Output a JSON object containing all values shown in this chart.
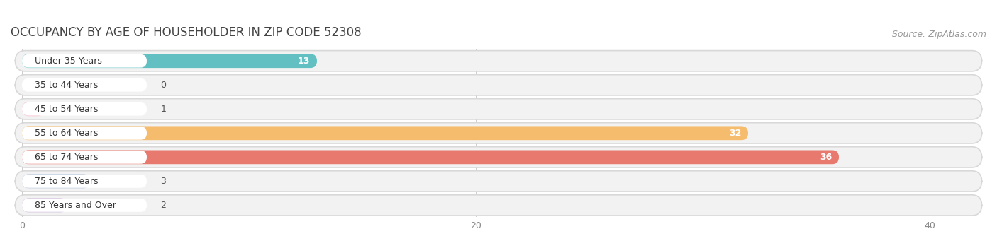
{
  "title": "OCCUPANCY BY AGE OF HOUSEHOLDER IN ZIP CODE 52308",
  "source": "Source: ZipAtlas.com",
  "categories": [
    "Under 35 Years",
    "35 to 44 Years",
    "45 to 54 Years",
    "55 to 64 Years",
    "65 to 74 Years",
    "75 to 84 Years",
    "85 Years and Over"
  ],
  "values": [
    13,
    0,
    1,
    32,
    36,
    3,
    2
  ],
  "bar_colors": [
    "#62c0c2",
    "#a9a9d9",
    "#f5a0b5",
    "#f6bc6e",
    "#e8796e",
    "#a8bcd9",
    "#c9aad9"
  ],
  "row_bg_color": "#efefef",
  "row_border_color": "#e0e0e0",
  "label_bg_color": "#ffffff",
  "xlim": [
    0,
    42
  ],
  "xticks": [
    0,
    20,
    40
  ],
  "title_fontsize": 12,
  "source_fontsize": 9,
  "bar_height": 0.58,
  "background_color": "#ffffff",
  "value_color_inside": "#ffffff",
  "value_color_outside": "#666666"
}
